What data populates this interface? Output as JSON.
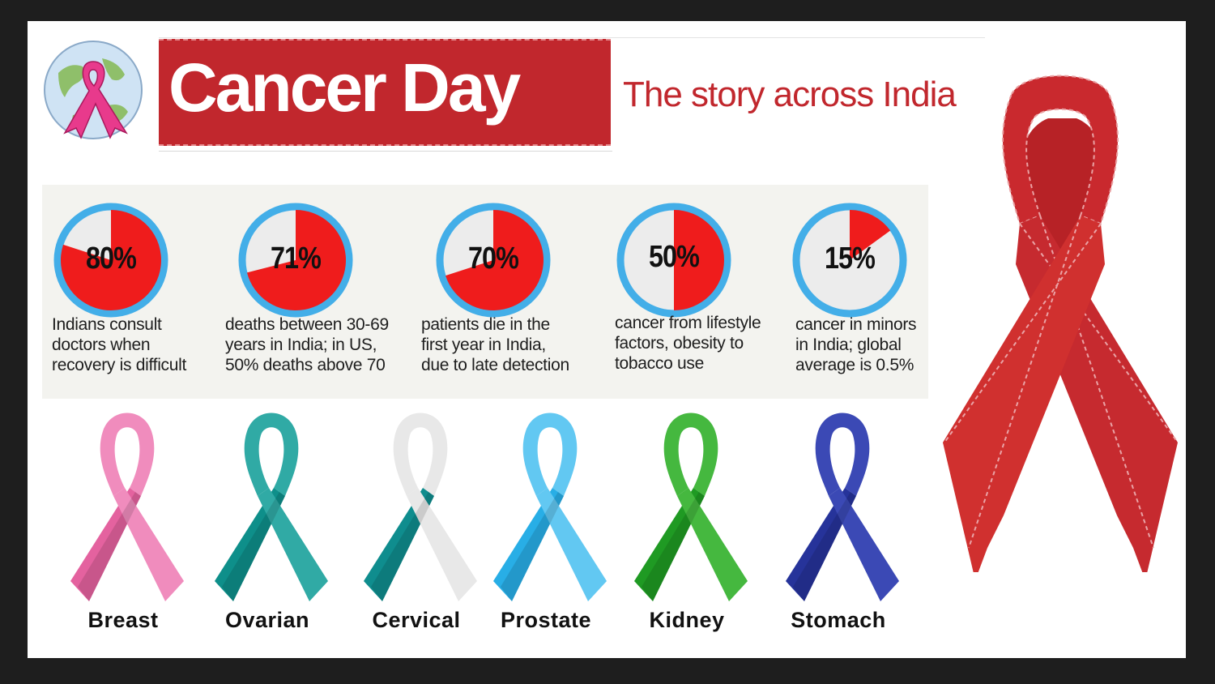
{
  "header": {
    "title": "Cancer Day",
    "tagline": "The story across India"
  },
  "stats": [
    {
      "percent": "80%",
      "value": 80,
      "text": [
        "Indians consult",
        "doctors when",
        "recovery is difficult"
      ]
    },
    {
      "percent": "71%",
      "value": 71,
      "text": [
        "deaths between 30-69",
        "years in India; in US,",
        "50% deaths above 70"
      ]
    },
    {
      "percent": "70%",
      "value": 70,
      "text": [
        "patients die in the",
        "first year in India,",
        "due to late detection"
      ]
    },
    {
      "percent": "50%",
      "value": 50,
      "text": [
        "cancer from lifestyle",
        "factors, obesity to",
        "tobacco use"
      ]
    },
    {
      "percent": "15%",
      "value": 15,
      "text": [
        "cancer in minors",
        "in India; global",
        "average is 0.5%"
      ]
    }
  ],
  "ribbons": [
    {
      "label": "Breast",
      "color": "#e4629f",
      "color2": "#f08cbd"
    },
    {
      "label": "Ovarian",
      "color": "#0e8f8a",
      "color2": "#30aaa5"
    },
    {
      "label": "Cervical",
      "color": "#0f8d8e",
      "color2": "#e8e8e8"
    },
    {
      "label": "Prostate",
      "color": "#28aee6",
      "color2": "#62c8f2"
    },
    {
      "label": "Kidney",
      "color": "#1f9a23",
      "color2": "#45b83f"
    },
    {
      "label": "Stomach",
      "color": "#26339a",
      "color2": "#3b49b5"
    }
  ],
  "colors": {
    "brand_red": "#c1272d",
    "pie_red": "#ef1c1c",
    "pie_ring": "#43aee8",
    "pie_bg": "#ececec"
  },
  "icons": {
    "logo": "globe-pink-ribbon-icon",
    "big_ribbon": "red-ribbon-icon"
  }
}
